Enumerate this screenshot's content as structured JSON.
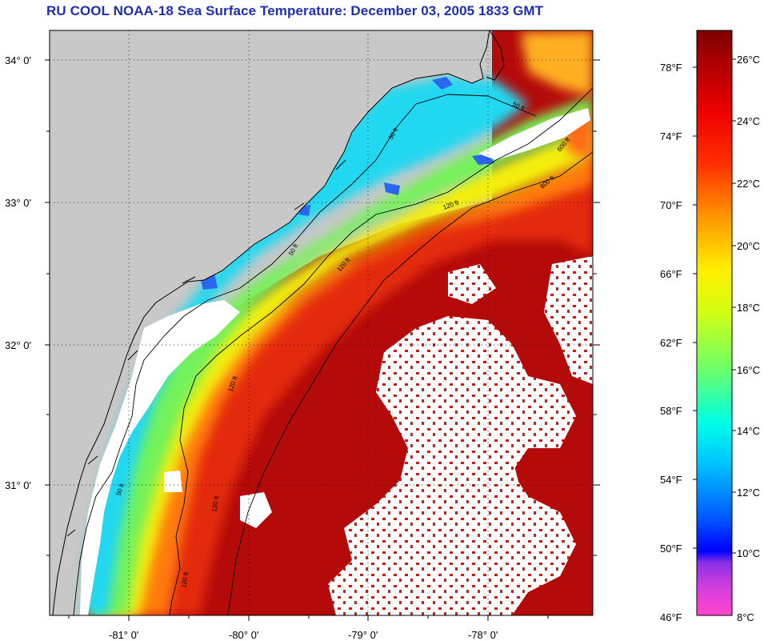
{
  "title": "RU COOL  NOAA-18  Sea Surface Temperature:  December 03, 2005 1833 GMT",
  "map": {
    "lat_labels": [
      "34° 0'",
      "33° 0'",
      "32° 0'",
      "31° 0'"
    ],
    "lon_labels": [
      "-81° 0'",
      "-80° 0'",
      "-79° 0'",
      "-78° 0'"
    ],
    "contour_labels": [
      "50 ft",
      "50 ft",
      "50 ft",
      "50 ft",
      "120 ft",
      "120 ft",
      "120 ft",
      "120 ft",
      "120 ft",
      "600 ft",
      "600 ft"
    ],
    "colors": {
      "land": "#c8c8c8",
      "cloud": "#ffffff",
      "coast": "#000000"
    }
  },
  "colorbar": {
    "fahrenheit_labels": [
      "78°F",
      "74°F",
      "70°F",
      "66°F",
      "62°F",
      "58°F",
      "54°F",
      "50°F",
      "46°F"
    ],
    "celsius_labels": [
      "26°C",
      "24°C",
      "22°C",
      "20°C",
      "18°C",
      "16°C",
      "14°C",
      "12°C",
      "10°C",
      "8°C"
    ],
    "range_c": [
      8,
      27
    ]
  }
}
